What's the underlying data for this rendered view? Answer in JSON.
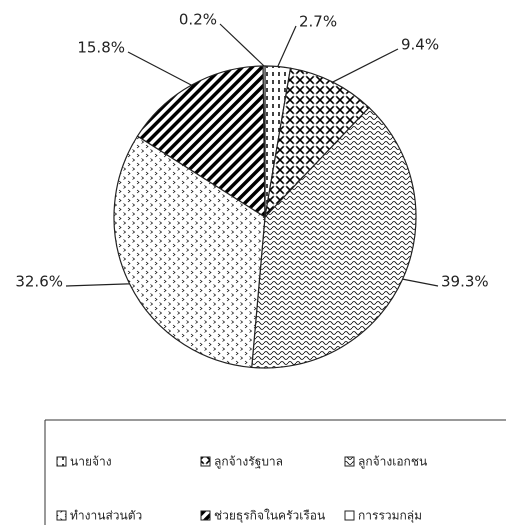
{
  "chart_data": {
    "type": "pie",
    "categories": [
      "นายจ้าง",
      "ลูกจ้างรัฐบาล",
      "ลูกจ้างเอกชน",
      "ทำงานส่วนตัว",
      "ช่วยธุรกิจในครัวเรือน",
      "การรวมกลุ่ม"
    ],
    "values": [
      2.7,
      9.4,
      39.3,
      32.6,
      15.8,
      0.2
    ],
    "value_labels": [
      "2.7%",
      "9.4%",
      "39.3%",
      "32.6%",
      "15.8%",
      "0.2%"
    ],
    "legend": "bottom"
  }
}
